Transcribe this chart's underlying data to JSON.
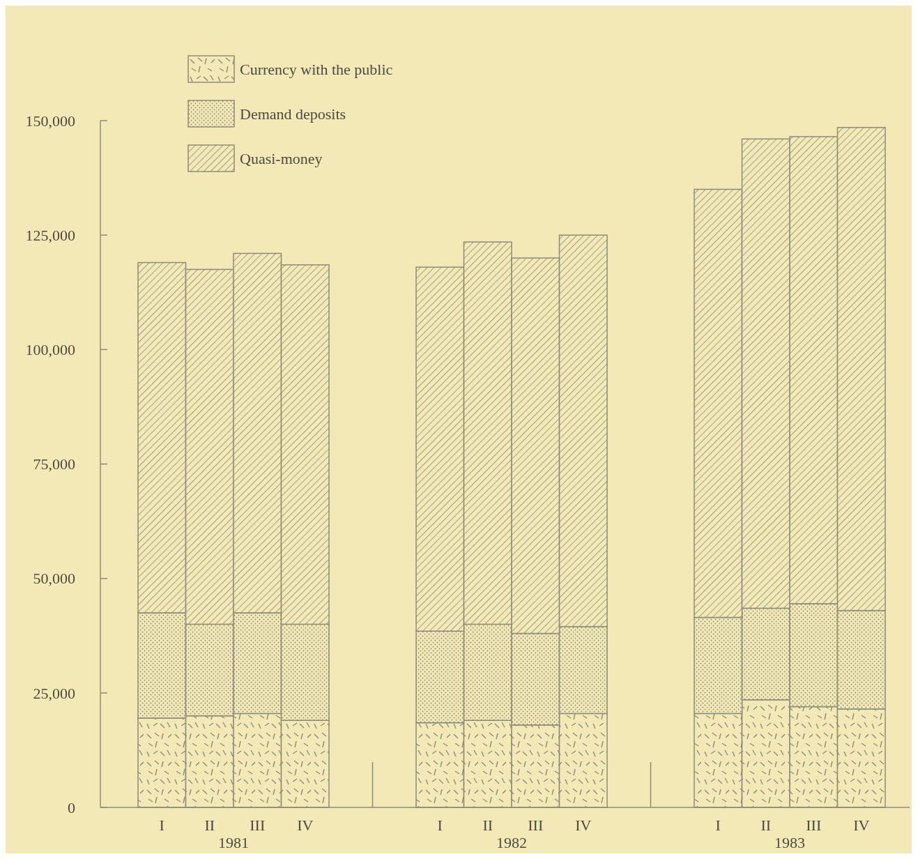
{
  "chart_data": {
    "type": "bar",
    "stacked": true,
    "categories": [
      "I",
      "II",
      "III",
      "IV",
      "I",
      "II",
      "III",
      "IV",
      "I",
      "II",
      "III",
      "IV"
    ],
    "series": [
      {
        "name": "Currency with the public",
        "color": "#8c8c7a",
        "values": [
          19500,
          20000,
          20500,
          19000,
          18500,
          19000,
          18000,
          20500,
          20500,
          23500,
          22000,
          21500
        ]
      },
      {
        "name": "Demand deposits",
        "color": "#8c8c7a",
        "values": [
          23000,
          20000,
          22000,
          21000,
          20000,
          21000,
          20000,
          19000,
          21000,
          20000,
          22500,
          21500
        ]
      },
      {
        "name": "Quasi-money",
        "color": "#8c8c7a",
        "values": [
          76500,
          77500,
          78500,
          78500,
          79500,
          83500,
          82000,
          85500,
          93500,
          102500,
          102000,
          105500
        ]
      }
    ],
    "ylim": [
      0,
      150000
    ],
    "yticks": [
      {
        "value": 0,
        "label": "0"
      },
      {
        "value": 25000,
        "label": "25,000"
      },
      {
        "value": 50000,
        "label": "50,000"
      },
      {
        "value": 75000,
        "label": "75,000"
      },
      {
        "value": 100000,
        "label": "100,000"
      },
      {
        "value": 125000,
        "label": "125,000"
      },
      {
        "value": 150000,
        "label": "150,000"
      }
    ],
    "annotations": [
      "1981",
      "1982",
      "1983"
    ],
    "legend": "top left",
    "grid": false
  }
}
